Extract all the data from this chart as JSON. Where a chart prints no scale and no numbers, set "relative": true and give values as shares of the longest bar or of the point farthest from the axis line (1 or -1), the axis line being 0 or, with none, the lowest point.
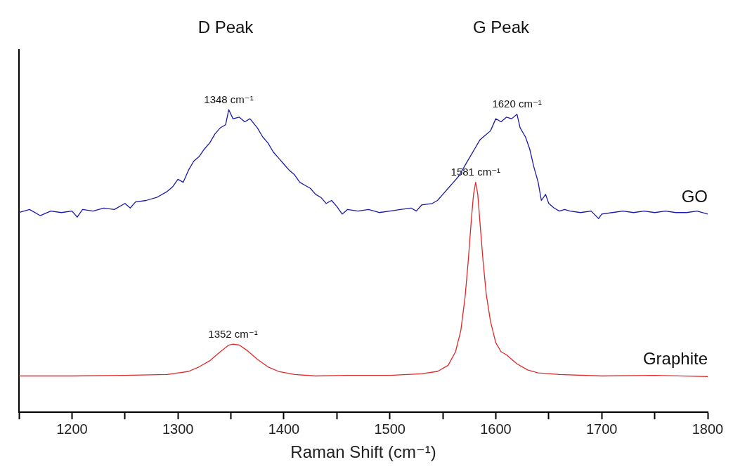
{
  "chart_data": {
    "type": "line",
    "relative": true,
    "xlabel": "Raman Shift (cm⁻¹)",
    "xlim": [
      1150,
      1800
    ],
    "xticks": [
      {
        "value": 1150,
        "label": null
      },
      1200,
      {
        "value": 1250,
        "label": null
      },
      1300,
      {
        "value": 1350,
        "label": null
      },
      1400,
      {
        "value": 1450,
        "label": null
      },
      1500,
      {
        "value": 1550,
        "label": null
      },
      1600,
      {
        "value": 1650,
        "label": null
      },
      1700,
      {
        "value": 1750,
        "label": null
      },
      1800
    ],
    "grid": false,
    "legend": false,
    "marker": "none",
    "line_style": "solid",
    "annotations": [
      "D Peak",
      "G Peak",
      {
        "text": "1348 cm⁻¹",
        "x": 1348,
        "y": 1.0
      },
      {
        "text": "1620 cm⁻¹",
        "x": 1620,
        "y": 0.985
      },
      {
        "text": "1581 cm⁻¹",
        "x": 1581,
        "y": 0.76
      },
      {
        "text": "1352 cm⁻¹",
        "x": 1352,
        "y": 0.225
      }
    ],
    "series": [
      {
        "name": "GO",
        "color": "#1a1aa8",
        "x": [
          1150,
          1160,
          1170,
          1180,
          1190,
          1200,
          1205,
          1210,
          1220,
          1230,
          1240,
          1250,
          1255,
          1260,
          1270,
          1280,
          1290,
          1295,
          1300,
          1305,
          1310,
          1315,
          1320,
          1325,
          1330,
          1335,
          1340,
          1345,
          1348,
          1352,
          1358,
          1363,
          1368,
          1375,
          1380,
          1385,
          1390,
          1395,
          1400,
          1405,
          1410,
          1415,
          1420,
          1425,
          1430,
          1435,
          1440,
          1445,
          1450,
          1455,
          1460,
          1470,
          1480,
          1490,
          1500,
          1510,
          1520,
          1525,
          1530,
          1540,
          1545,
          1550,
          1555,
          1560,
          1565,
          1570,
          1575,
          1580,
          1585,
          1590,
          1595,
          1600,
          1605,
          1610,
          1615,
          1620,
          1623,
          1628,
          1632,
          1636,
          1640,
          1643,
          1647,
          1650,
          1655,
          1660,
          1665,
          1670,
          1680,
          1690,
          1697,
          1700,
          1710,
          1720,
          1730,
          1740,
          1750,
          1760,
          1770,
          1780,
          1790,
          1800
        ],
        "values": [
          0.66,
          0.67,
          0.65,
          0.665,
          0.66,
          0.665,
          0.645,
          0.67,
          0.665,
          0.675,
          0.67,
          0.69,
          0.675,
          0.695,
          0.7,
          0.71,
          0.73,
          0.745,
          0.77,
          0.76,
          0.8,
          0.83,
          0.845,
          0.87,
          0.89,
          0.92,
          0.94,
          0.95,
          1.0,
          0.97,
          0.975,
          0.96,
          0.97,
          0.94,
          0.91,
          0.89,
          0.86,
          0.84,
          0.82,
          0.8,
          0.785,
          0.76,
          0.75,
          0.74,
          0.72,
          0.71,
          0.69,
          0.7,
          0.68,
          0.655,
          0.67,
          0.665,
          0.67,
          0.66,
          0.665,
          0.67,
          0.675,
          0.665,
          0.685,
          0.69,
          0.7,
          0.72,
          0.74,
          0.76,
          0.78,
          0.81,
          0.84,
          0.87,
          0.9,
          0.915,
          0.93,
          0.97,
          0.96,
          0.975,
          0.97,
          0.985,
          0.94,
          0.91,
          0.87,
          0.81,
          0.76,
          0.7,
          0.72,
          0.69,
          0.675,
          0.665,
          0.67,
          0.665,
          0.66,
          0.665,
          0.64,
          0.655,
          0.66,
          0.665,
          0.66,
          0.665,
          0.66,
          0.665,
          0.66,
          0.66,
          0.665,
          0.655
        ]
      },
      {
        "name": "Graphite",
        "color": "#e02828",
        "x": [
          1150,
          1200,
          1250,
          1290,
          1300,
          1310,
          1320,
          1330,
          1340,
          1348,
          1352,
          1358,
          1365,
          1375,
          1385,
          1395,
          1410,
          1430,
          1460,
          1500,
          1530,
          1545,
          1555,
          1562,
          1567,
          1571,
          1574,
          1577,
          1579,
          1581,
          1583,
          1585,
          1588,
          1591,
          1595,
          1600,
          1605,
          1610,
          1620,
          1630,
          1640,
          1660,
          1700,
          1750,
          1800
        ],
        "values": [
          0.12,
          0.12,
          0.122,
          0.125,
          0.13,
          0.135,
          0.15,
          0.17,
          0.2,
          0.222,
          0.225,
          0.222,
          0.205,
          0.175,
          0.15,
          0.135,
          0.125,
          0.12,
          0.122,
          0.122,
          0.127,
          0.135,
          0.155,
          0.2,
          0.27,
          0.38,
          0.5,
          0.64,
          0.72,
          0.76,
          0.72,
          0.63,
          0.5,
          0.39,
          0.3,
          0.23,
          0.2,
          0.19,
          0.16,
          0.14,
          0.13,
          0.125,
          0.12,
          0.122,
          0.118
        ]
      }
    ]
  }
}
